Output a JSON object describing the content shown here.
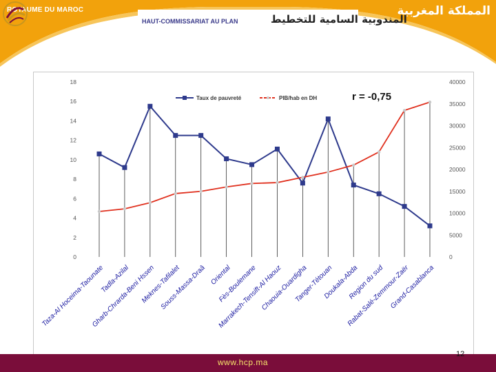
{
  "header": {
    "country_fr": "ROYAUME DU MAROC",
    "country_ar": "المملكة المغربية",
    "org_fr": "HAUT-COMMISSARIAT AU PLAN",
    "org_ar": "المندوبية السامية للتخطيط",
    "banner_color": "#f2a20c",
    "logo_icon": "hcp-logo-icon"
  },
  "chart_data": {
    "type": "line",
    "annotation": "r  = -0,75",
    "categories": [
      "Taza-Al Hoceima-Taounate",
      "Tadla-Azilal",
      "Gharb-Chrarda-Beni Hssen",
      "Meknes-Tafilalet",
      "Souss-Massa-Draâ",
      "Oriental",
      "Fès-Boulemane",
      "Marrakech-Tensift-Al Haouz",
      "Chaouia-Ouardigha",
      "Tanger-Tétouan",
      "Doukala-Abda",
      "Region du sud",
      "Rabat-Salé-Zemmour-Zaër",
      "Grand-Casablanca"
    ],
    "series": [
      {
        "name": "Taux de pauvreté",
        "axis": "left",
        "color": "#2e3a8c",
        "marker": "square",
        "values": [
          10.6,
          9.2,
          15.5,
          12.5,
          12.5,
          10.1,
          9.5,
          11.1,
          7.6,
          14.2,
          7.4,
          6.5,
          5.2,
          3.2
        ]
      },
      {
        "name": "PIB/hab en DH",
        "axis": "right",
        "color": "#e0301e",
        "marker": "circle",
        "values": [
          10400,
          11000,
          12400,
          14500,
          15000,
          16000,
          16800,
          17000,
          18200,
          19400,
          21000,
          24000,
          33500,
          35400
        ]
      }
    ],
    "y_left": {
      "ylim": [
        0,
        18
      ],
      "ticks": [
        0,
        2,
        4,
        6,
        8,
        10,
        12,
        14,
        16,
        18
      ]
    },
    "y_right": {
      "ylim": [
        0,
        40000
      ],
      "ticks": [
        0,
        5000,
        10000,
        15000,
        20000,
        25000,
        30000,
        35000,
        40000
      ]
    },
    "grid": false,
    "drop_lines": true,
    "legend_position": "top"
  },
  "footer": {
    "url": "www.hcp.ma",
    "page": "12",
    "color": "#7a0d3a",
    "url_color": "#f7e36b"
  }
}
